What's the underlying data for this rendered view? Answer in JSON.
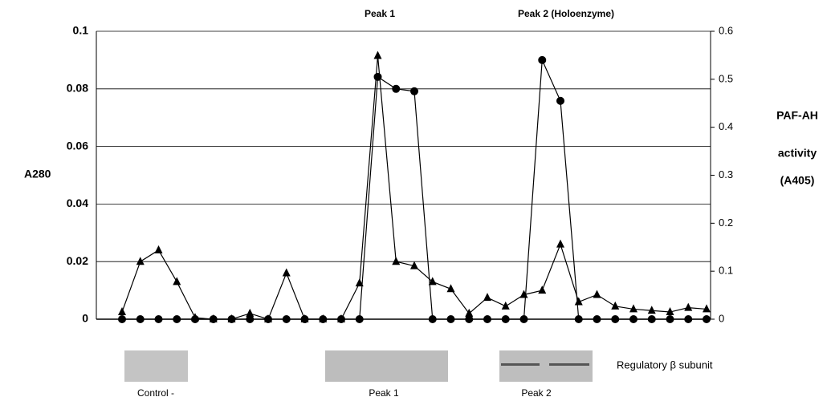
{
  "chart_data": {
    "type": "line",
    "ylabel": "A280",
    "y2label": [
      "PAF-AH",
      "activity",
      "(A405)"
    ],
    "annotations": [
      "Peak 1",
      "Peak 2 (Holoenzyme)"
    ],
    "ylim": [
      0,
      0.1
    ],
    "yticks": [
      0,
      0.02,
      0.04,
      0.06,
      0.08,
      0.1
    ],
    "y2lim": [
      0,
      0.6
    ],
    "y2ticks": [
      0,
      0.1,
      0.2,
      0.3,
      0.4,
      0.5,
      0.6
    ],
    "grid": true,
    "series": [
      {
        "color": "#000000",
        "marker": "triangle",
        "values": [
          0.0025,
          0.02,
          0.024,
          0.013,
          0.0005,
          0,
          0,
          0.002,
          0,
          0.016,
          0,
          0,
          0,
          0.0125,
          0.0915,
          0.02,
          0.0185,
          0.013,
          0.0105,
          0.002,
          0.0075,
          0.0045,
          0.0085,
          0.01,
          0.026,
          0.006,
          0.0085,
          0.0045,
          0.0035,
          0.003,
          0.0025,
          0.004,
          0.0035
        ]
      },
      {
        "color": "#000000",
        "marker": "circle",
        "axis": "y2",
        "values": [
          0,
          0,
          0,
          0,
          0,
          0,
          0,
          0,
          0,
          0,
          0,
          0,
          0,
          0,
          0.505,
          0.48,
          0.475,
          0,
          0,
          0,
          0,
          0,
          0,
          0.54,
          0.455,
          0,
          0,
          0,
          0,
          0,
          0,
          0,
          0
        ]
      }
    ],
    "gels": [
      "Control -",
      "Peak 1",
      "Peak 2"
    ],
    "gel_caption": "Regulatory β subunit"
  }
}
